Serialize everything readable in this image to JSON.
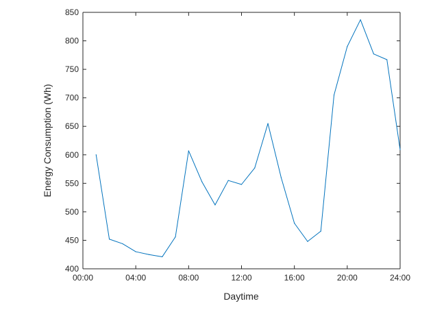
{
  "chart_data": {
    "type": "line",
    "title": "",
    "xlabel": "Daytime",
    "ylabel": "Energy Consumption (Wh)",
    "xlim": [
      0,
      24
    ],
    "ylim": [
      400,
      850
    ],
    "x_ticks": [
      0,
      4,
      8,
      12,
      16,
      20,
      24
    ],
    "x_tick_labels": [
      "00:00",
      "04:00",
      "08:00",
      "12:00",
      "16:00",
      "20:00",
      "24:00"
    ],
    "y_ticks": [
      400,
      450,
      500,
      550,
      600,
      650,
      700,
      750,
      800,
      850
    ],
    "y_tick_labels": [
      "400",
      "450",
      "500",
      "550",
      "600",
      "650",
      "700",
      "750",
      "800",
      "850"
    ],
    "grid": false,
    "series": [
      {
        "color": "#0072bd",
        "x": [
          1,
          2,
          3,
          4,
          5,
          6,
          7,
          8,
          9,
          10,
          11,
          12,
          13,
          14,
          15,
          16,
          17,
          18,
          19,
          20,
          21,
          22,
          23,
          24
        ],
        "values": [
          600,
          452,
          444,
          430,
          425,
          421,
          456,
          607,
          553,
          512,
          555,
          548,
          577,
          655,
          560,
          480,
          448,
          466,
          705,
          790,
          837,
          777,
          767,
          609
        ]
      }
    ]
  }
}
